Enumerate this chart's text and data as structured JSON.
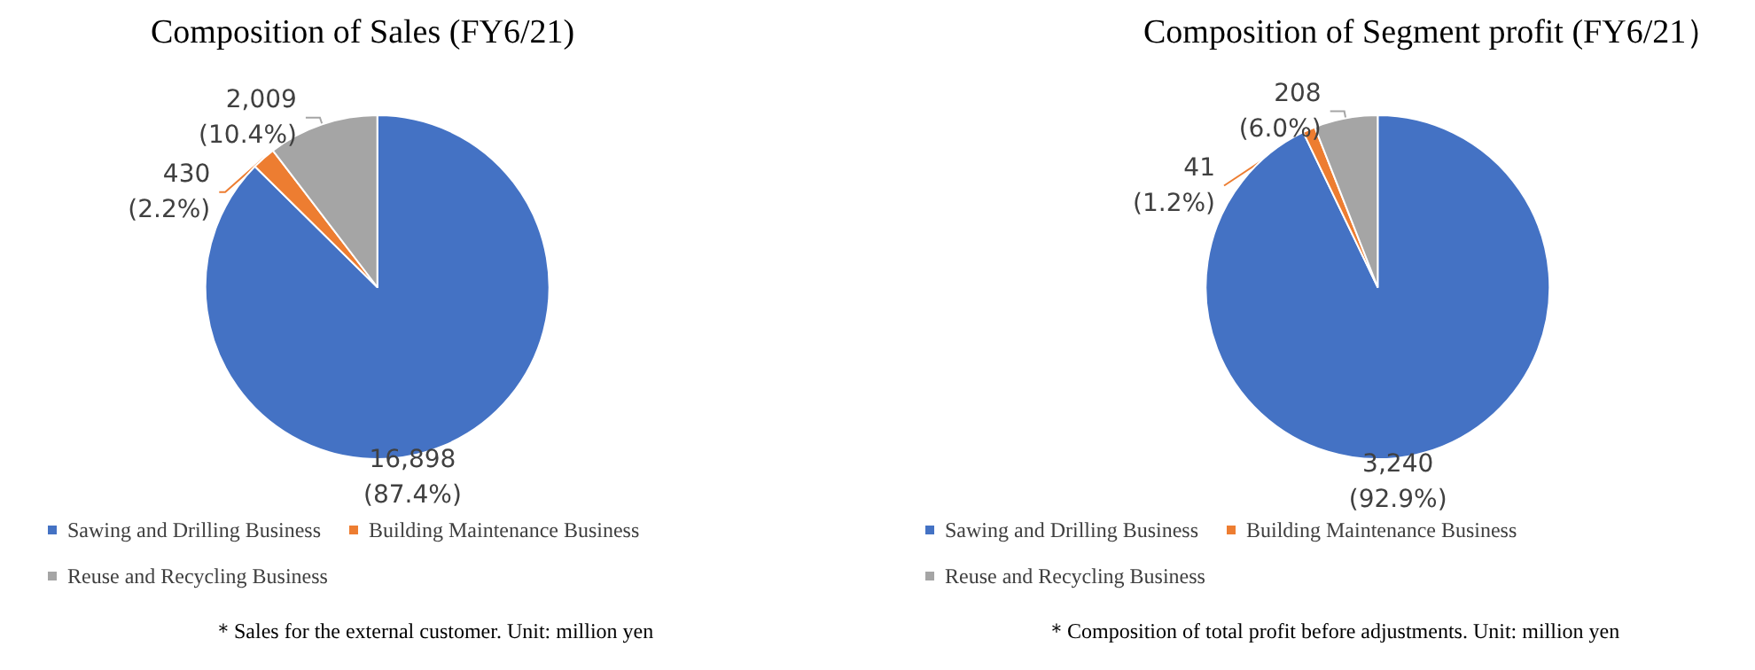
{
  "chart_data": [
    {
      "type": "pie",
      "title": "Composition of Sales (FY6/21)",
      "categories": [
        "Sawing and Drilling Business",
        "Building Maintenance Business",
        "Reuse and Recycling Business"
      ],
      "values": [
        16898,
        430,
        2009
      ],
      "colors": [
        "#4472c4",
        "#ed7d31",
        "#a5a5a5"
      ],
      "value_labels": [
        "16,898\n(87.4%)",
        "430\n(2.2%)",
        "2,009\n(10.4%)"
      ],
      "legend": "bottom left",
      "annotations": [
        "＊Sales for the external customer. Unit: million yen"
      ]
    },
    {
      "type": "pie",
      "title": "Composition of Segment profit (FY6/21）",
      "categories": [
        "Sawing and Drilling Business",
        "Building Maintenance Business",
        "Reuse and Recycling Business"
      ],
      "values": [
        3240,
        41,
        208
      ],
      "colors": [
        "#4472c4",
        "#ed7d31",
        "#a5a5a5"
      ],
      "value_labels": [
        "3,240\n(92.9%)",
        "41\n(1.2%)",
        "208\n(6.0%)"
      ],
      "legend": "bottom left",
      "annotations": [
        "＊Composition of total profit before adjustments. Unit: million yen"
      ]
    }
  ]
}
